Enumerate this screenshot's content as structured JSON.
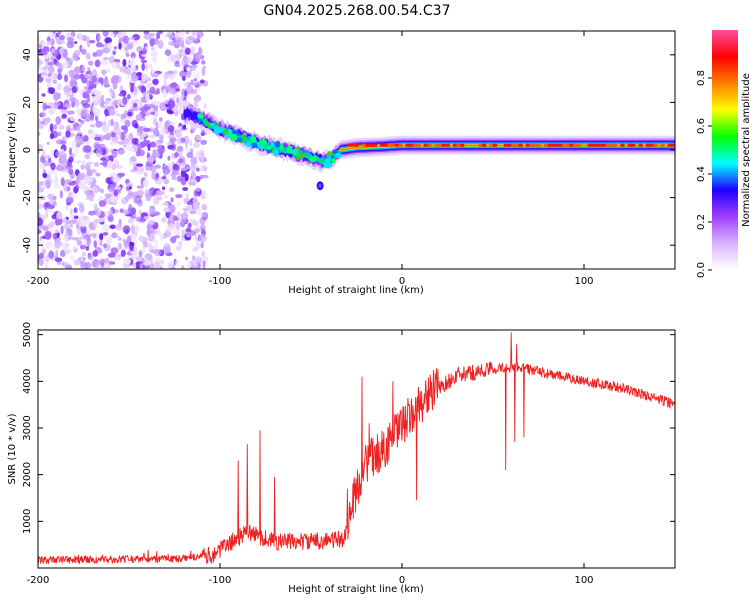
{
  "title": "GN04.2025.268.00.54.C37",
  "chart_data": [
    {
      "type": "heatmap",
      "name": "spectrogram",
      "xlabel": "Height of straight line (km)",
      "ylabel": "Frequency (Hz)",
      "xlim": [
        -200,
        150
      ],
      "ylim": [
        -50,
        50
      ],
      "xticks": [
        -200,
        -100,
        0,
        100
      ],
      "yticks": [
        -40,
        -20,
        0,
        20,
        40
      ],
      "colorbar": {
        "label": "Normalized spectral amplitude",
        "range": [
          0,
          1
        ],
        "ticks": [
          "0.0",
          "0.2",
          "0.4",
          "0.6",
          "0.8"
        ],
        "colormap": [
          "#ffffff",
          "#d9b3ff",
          "#a040ff",
          "#2000ff",
          "#00ffff",
          "#00ff00",
          "#ffff00",
          "#ff7f00",
          "#ff0000",
          "#ff4fa0"
        ]
      },
      "noise_region_x": [
        -200,
        -108
      ],
      "track_centerline": [
        {
          "x": -118,
          "y": 15
        },
        {
          "x": -110,
          "y": 13
        },
        {
          "x": -100,
          "y": 9
        },
        {
          "x": -90,
          "y": 6
        },
        {
          "x": -80,
          "y": 3
        },
        {
          "x": -70,
          "y": 1
        },
        {
          "x": -60,
          "y": -1
        },
        {
          "x": -50,
          "y": -3
        },
        {
          "x": -42,
          "y": -5
        },
        {
          "x": -38,
          "y": -3
        },
        {
          "x": -34,
          "y": 0
        },
        {
          "x": -25,
          "y": 1
        },
        {
          "x": -10,
          "y": 1.5
        },
        {
          "x": 0,
          "y": 2
        },
        {
          "x": 50,
          "y": 2
        },
        {
          "x": 100,
          "y": 2
        },
        {
          "x": 150,
          "y": 2
        }
      ]
    },
    {
      "type": "line",
      "name": "snr",
      "xlabel": "Height of straight line (km)",
      "ylabel": "SNR (10 * v/v)",
      "xlim": [
        -200,
        150
      ],
      "ylim": [
        0,
        5100
      ],
      "xticks": [
        -200,
        -100,
        0,
        100
      ],
      "yticks": [
        1000,
        2000,
        3000,
        4000,
        5000
      ],
      "color": "#ee2222",
      "envelope": [
        {
          "x": -200,
          "y": 150
        },
        {
          "x": -120,
          "y": 180
        },
        {
          "x": -105,
          "y": 250
        },
        {
          "x": -95,
          "y": 500
        },
        {
          "x": -85,
          "y": 750
        },
        {
          "x": -70,
          "y": 550
        },
        {
          "x": -50,
          "y": 550
        },
        {
          "x": -32,
          "y": 600
        },
        {
          "x": -26,
          "y": 1500
        },
        {
          "x": -20,
          "y": 2200
        },
        {
          "x": -10,
          "y": 2500
        },
        {
          "x": 0,
          "y": 3000
        },
        {
          "x": 15,
          "y": 3700
        },
        {
          "x": 30,
          "y": 4100
        },
        {
          "x": 50,
          "y": 4250
        },
        {
          "x": 65,
          "y": 4300
        },
        {
          "x": 80,
          "y": 4150
        },
        {
          "x": 100,
          "y": 4000
        },
        {
          "x": 120,
          "y": 3850
        },
        {
          "x": 150,
          "y": 3500
        }
      ],
      "spikes": [
        {
          "x": -90,
          "y": 2300
        },
        {
          "x": -85,
          "y": 2650
        },
        {
          "x": -78,
          "y": 2950
        },
        {
          "x": -70,
          "y": 1950
        },
        {
          "x": -30,
          "y": 1700
        },
        {
          "x": -22,
          "y": 4100
        },
        {
          "x": -18,
          "y": 3100
        },
        {
          "x": -15,
          "y": 2600
        },
        {
          "x": -5,
          "y": 4000
        },
        {
          "x": 5,
          "y": 3500
        },
        {
          "x": 20,
          "y": 3900
        },
        {
          "x": 57,
          "y": 4900
        },
        {
          "x": 60,
          "y": 5050
        },
        {
          "x": 63,
          "y": 4800
        }
      ],
      "dips": [
        {
          "x": 8,
          "y": 1450
        },
        {
          "x": 57,
          "y": 2100
        },
        {
          "x": 62,
          "y": 2700
        },
        {
          "x": 67,
          "y": 2800
        }
      ]
    }
  ]
}
